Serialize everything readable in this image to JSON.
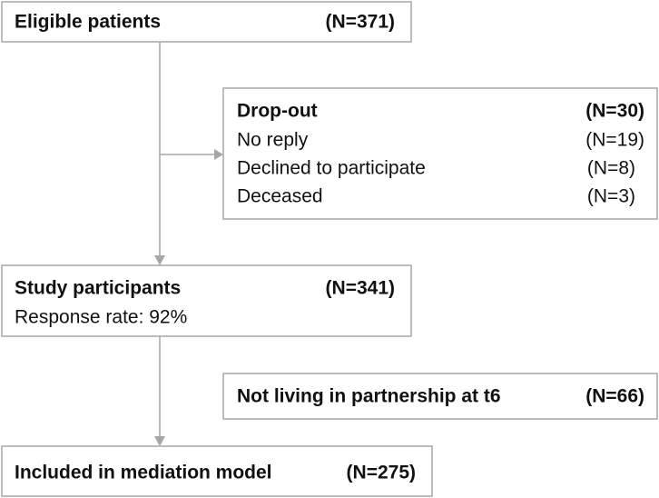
{
  "nodes": [
    {
      "label": "Eligible patients",
      "count": "(N=371)"
    },
    {
      "label": "Drop-out",
      "count": "(N=30)",
      "items": [
        {
          "label": "No reply",
          "count": "(N=19)"
        },
        {
          "label": "Declined to participate",
          "count": "(N=8)"
        },
        {
          "label": "Deceased",
          "count": "(N=3)"
        }
      ]
    },
    {
      "label": "Study participants",
      "count": "(N=341)",
      "note": "Response rate: 92%"
    },
    {
      "label": "Not living in partnership at t6",
      "count": "(N=66)"
    },
    {
      "label": "Included in mediation model",
      "count": "(N=275)"
    }
  ]
}
